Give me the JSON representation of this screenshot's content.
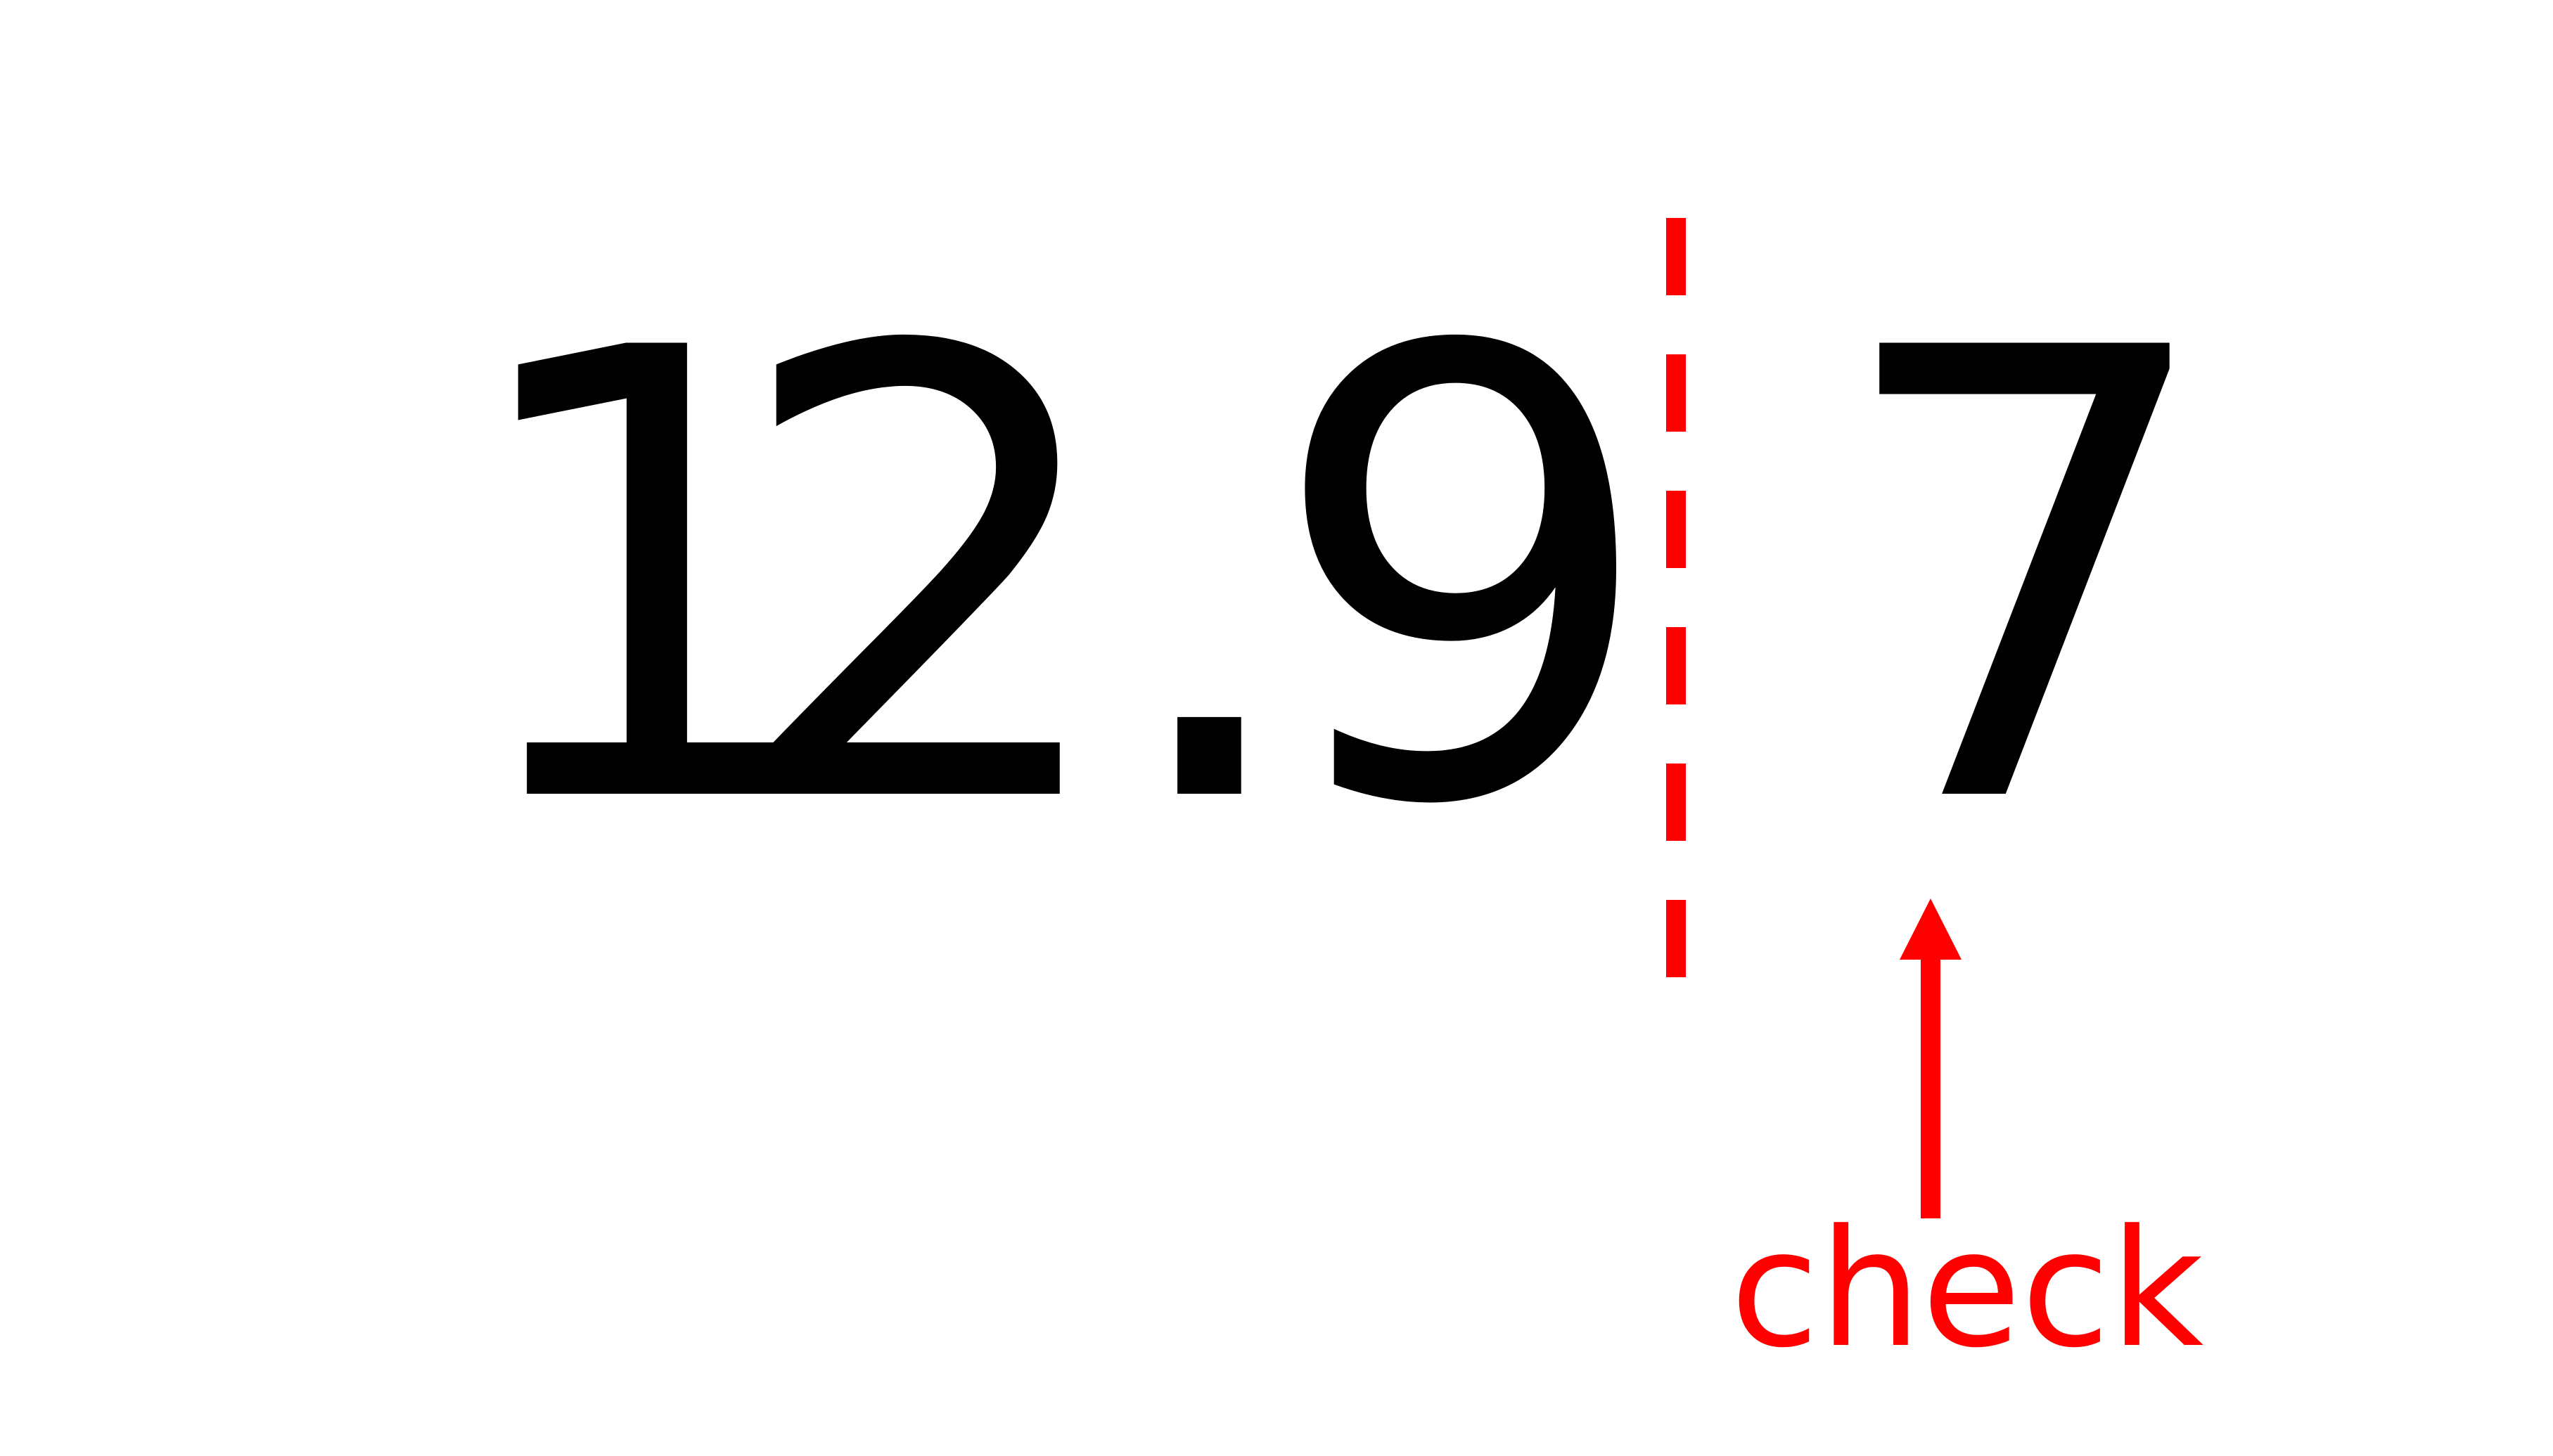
{
  "number": {
    "digit_tens": "1",
    "digit_ones": "2",
    "decimal_point": ".",
    "digit_tenths": "9",
    "digit_hundredths": "7"
  },
  "annotation": {
    "label": "check",
    "color": "#ff0000"
  },
  "colors": {
    "digits": "#000000",
    "background": "#ffffff"
  }
}
